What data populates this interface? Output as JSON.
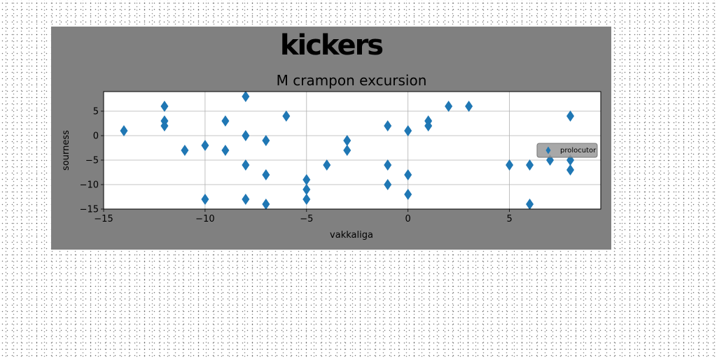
{
  "chart_data": {
    "type": "scatter",
    "suptitle": "kickers",
    "title": "M crampon excursion",
    "xlabel": "vakkaliga",
    "ylabel": "sourness",
    "xlim": [
      -15,
      9.5
    ],
    "ylim": [
      -15,
      9
    ],
    "xticks": [
      -15,
      -10,
      -5,
      0,
      5
    ],
    "yticks": [
      5,
      0,
      -5,
      -10,
      -15
    ],
    "grid": true,
    "legend_position": "center-right",
    "marker": "thin-diamond",
    "colors": {
      "figure_bg": "#808080",
      "axes_bg": "#ffffff",
      "series": "#1f77b4",
      "legend_bg": "#999999"
    },
    "series": [
      {
        "name": "prolocutor",
        "points": [
          [
            -14,
            1
          ],
          [
            -12,
            6
          ],
          [
            -12,
            3
          ],
          [
            -12,
            2
          ],
          [
            -11,
            -3
          ],
          [
            -10,
            -2
          ],
          [
            -10,
            -13
          ],
          [
            -9,
            3
          ],
          [
            -9,
            -3
          ],
          [
            -8,
            8
          ],
          [
            -8,
            0
          ],
          [
            -8,
            -6
          ],
          [
            -8,
            -13
          ],
          [
            -7,
            -1
          ],
          [
            -7,
            -8
          ],
          [
            -7,
            -14
          ],
          [
            -6,
            4
          ],
          [
            -5,
            -9
          ],
          [
            -5,
            -11
          ],
          [
            -5,
            -13
          ],
          [
            -4,
            -6
          ],
          [
            -3,
            -1
          ],
          [
            -3,
            -3
          ],
          [
            -1,
            2
          ],
          [
            -1,
            -6
          ],
          [
            -1,
            -10
          ],
          [
            0,
            1
          ],
          [
            0,
            -8
          ],
          [
            0,
            -12
          ],
          [
            1,
            3
          ],
          [
            1,
            2
          ],
          [
            2,
            6
          ],
          [
            3,
            6
          ],
          [
            5,
            -6
          ],
          [
            6,
            -6
          ],
          [
            6,
            -14
          ],
          [
            7,
            -5
          ],
          [
            8,
            4
          ],
          [
            8,
            -5
          ],
          [
            8,
            -7
          ]
        ]
      }
    ]
  }
}
